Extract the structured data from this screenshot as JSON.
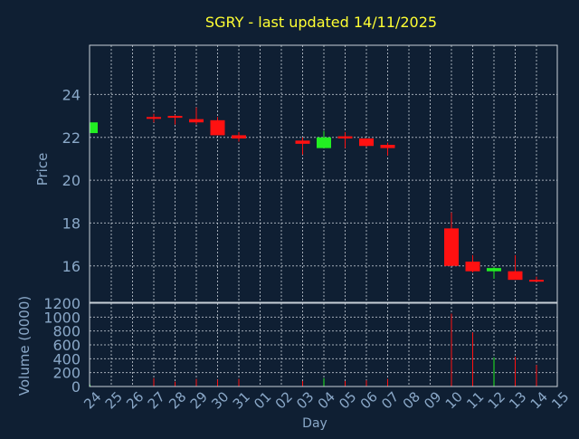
{
  "colors": {
    "background": "#0f1f33",
    "title": "#ffff33",
    "axis_text": "#8aa8c8",
    "frame": "#c8d0d8",
    "grid": "#c8d0d8",
    "up": "#22ee22",
    "down": "#ff1111"
  },
  "chart_data": [
    {
      "type": "candlestick",
      "title": "SGRY - last updated 14/11/2025",
      "ylabel": "Price",
      "ylim": [
        14.3,
        26.3
      ],
      "yticks": [
        16,
        18,
        20,
        22,
        24
      ],
      "grid": true,
      "categories": [
        "24",
        "25",
        "26",
        "27",
        "28",
        "29",
        "30",
        "31",
        "01",
        "02",
        "03",
        "04",
        "05",
        "06",
        "07",
        "08",
        "09",
        "10",
        "11",
        "12",
        "13",
        "14",
        "15"
      ],
      "candles": [
        {
          "day": "24",
          "open": 22.2,
          "high": 22.7,
          "low": 22.2,
          "close": 22.7
        },
        {
          "day": "27",
          "open": 22.95,
          "high": 23.1,
          "low": 22.7,
          "close": 22.9
        },
        {
          "day": "28",
          "open": 23.0,
          "high": 23.05,
          "low": 22.6,
          "close": 22.95
        },
        {
          "day": "29",
          "open": 22.85,
          "high": 23.4,
          "low": 22.6,
          "close": 22.7
        },
        {
          "day": "30",
          "open": 22.8,
          "high": 22.95,
          "low": 22.1,
          "close": 22.1
        },
        {
          "day": "31",
          "open": 22.1,
          "high": 22.25,
          "low": 21.8,
          "close": 21.95
        },
        {
          "day": "03",
          "open": 21.85,
          "high": 22.0,
          "low": 21.2,
          "close": 21.7
        },
        {
          "day": "04",
          "open": 21.5,
          "high": 22.3,
          "low": 21.5,
          "close": 22.0
        },
        {
          "day": "05",
          "open": 22.05,
          "high": 22.25,
          "low": 21.5,
          "close": 21.95
        },
        {
          "day": "06",
          "open": 21.95,
          "high": 21.95,
          "low": 21.55,
          "close": 21.6
        },
        {
          "day": "07",
          "open": 21.65,
          "high": 21.75,
          "low": 21.15,
          "close": 21.5
        },
        {
          "day": "10",
          "open": 17.75,
          "high": 18.5,
          "low": 16.0,
          "close": 16.0
        },
        {
          "day": "11",
          "open": 16.2,
          "high": 16.5,
          "low": 15.7,
          "close": 15.75
        },
        {
          "day": "12",
          "open": 15.75,
          "high": 15.95,
          "low": 15.4,
          "close": 15.9
        },
        {
          "day": "13",
          "open": 15.75,
          "high": 16.5,
          "low": 15.35,
          "close": 15.35
        },
        {
          "day": "14",
          "open": 15.35,
          "high": 15.5,
          "low": 15.25,
          "close": 15.3
        }
      ]
    },
    {
      "type": "bar",
      "ylabel": "Volume (0000)",
      "xlabel": "Day",
      "ylim": [
        0,
        1200
      ],
      "yticks": [
        0,
        200,
        400,
        600,
        800,
        1000,
        1200
      ],
      "grid": true,
      "categories": [
        "24",
        "25",
        "26",
        "27",
        "28",
        "29",
        "30",
        "31",
        "01",
        "02",
        "03",
        "04",
        "05",
        "06",
        "07",
        "08",
        "09",
        "10",
        "11",
        "12",
        "13",
        "14",
        "15"
      ],
      "bars": [
        {
          "day": "24",
          "value": 30,
          "dir": "up"
        },
        {
          "day": "27",
          "value": 120,
          "dir": "down"
        },
        {
          "day": "28",
          "value": 70,
          "dir": "down"
        },
        {
          "day": "29",
          "value": 110,
          "dir": "down"
        },
        {
          "day": "30",
          "value": 100,
          "dir": "down"
        },
        {
          "day": "31",
          "value": 110,
          "dir": "down"
        },
        {
          "day": "03",
          "value": 80,
          "dir": "down"
        },
        {
          "day": "04",
          "value": 120,
          "dir": "up"
        },
        {
          "day": "05",
          "value": 80,
          "dir": "down"
        },
        {
          "day": "06",
          "value": 90,
          "dir": "down"
        },
        {
          "day": "07",
          "value": 110,
          "dir": "down"
        },
        {
          "day": "10",
          "value": 1050,
          "dir": "down"
        },
        {
          "day": "11",
          "value": 780,
          "dir": "down"
        },
        {
          "day": "12",
          "value": 420,
          "dir": "up"
        },
        {
          "day": "13",
          "value": 430,
          "dir": "down"
        },
        {
          "day": "14",
          "value": 310,
          "dir": "down"
        }
      ]
    }
  ]
}
